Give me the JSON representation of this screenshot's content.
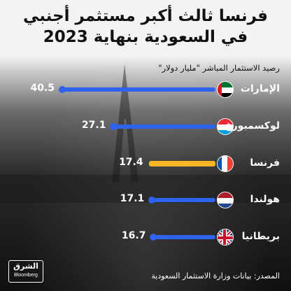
{
  "title_line1": "فرنسا ثالث أكبر مستثمر أجنبي",
  "title_line2": "في السعودية بنهاية 2023",
  "subtitle": "رصيد الاستثمار المباشر \"مليار دولار\"",
  "source": "المصدر: بيانات وزارة الاستثمار السعودية",
  "logo": {
    "arabic": "الشرق",
    "english": "Bloomberg"
  },
  "colors": {
    "bar": "#2f62f0",
    "highlight": "#f6b727"
  },
  "chart_data": {
    "type": "bar",
    "orientation": "horizontal",
    "title": "فرنسا ثالث أكبر مستثمر أجنبي في السعودية بنهاية 2023",
    "subtitle": "رصيد الاستثمار المباشر \"مليار دولار\"",
    "categories": [
      "الإمارات",
      "لوكسمبورغ",
      "فرنسا",
      "هولندا",
      "بريطانيا"
    ],
    "values": [
      40.5,
      27.1,
      17.4,
      17.1,
      16.7
    ],
    "value_labels": [
      "40.5",
      "27.1",
      "17.4",
      "17.1",
      "16.7"
    ],
    "flags": [
      "uae-flag",
      "luxembourg-flag",
      "france-flag",
      "netherlands-flag",
      "uk-flag"
    ],
    "highlight": "فرنسا",
    "xlim": [
      0,
      40.5
    ]
  }
}
